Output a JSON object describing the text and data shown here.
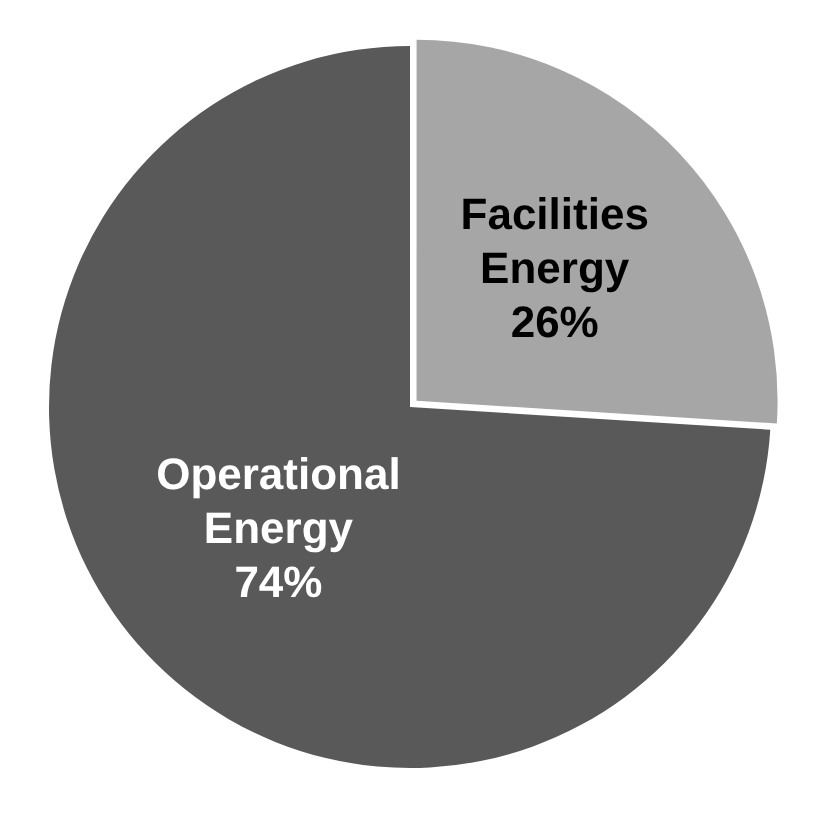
{
  "chart_data": {
    "type": "pie",
    "categories": [
      "Facilities Energy",
      "Operational Energy"
    ],
    "values": [
      26,
      74
    ],
    "colors": [
      "#a6a6a6",
      "#595959"
    ],
    "value_labels": [
      "26%",
      "74%"
    ],
    "legend": false
  }
}
